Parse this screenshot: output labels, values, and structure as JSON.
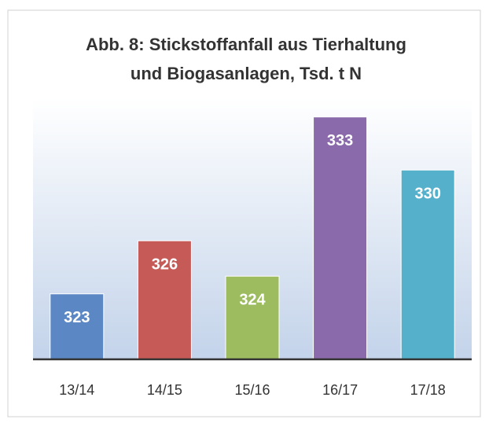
{
  "chart_data": {
    "type": "bar",
    "title": [
      "Abb. 8: Stickstoffanfall aus Tierhaltung",
      "und Biogasanlagen, Tsd. t N"
    ],
    "categories": [
      "13/14",
      "14/15",
      "15/16",
      "16/17",
      "17/18"
    ],
    "values": [
      323,
      326,
      324,
      333,
      330
    ],
    "colors": [
      "#5b87c5",
      "#c65a57",
      "#9dbc5f",
      "#8a6aaa",
      "#55b1cb"
    ],
    "ylim": [
      319.3,
      334.3
    ]
  }
}
